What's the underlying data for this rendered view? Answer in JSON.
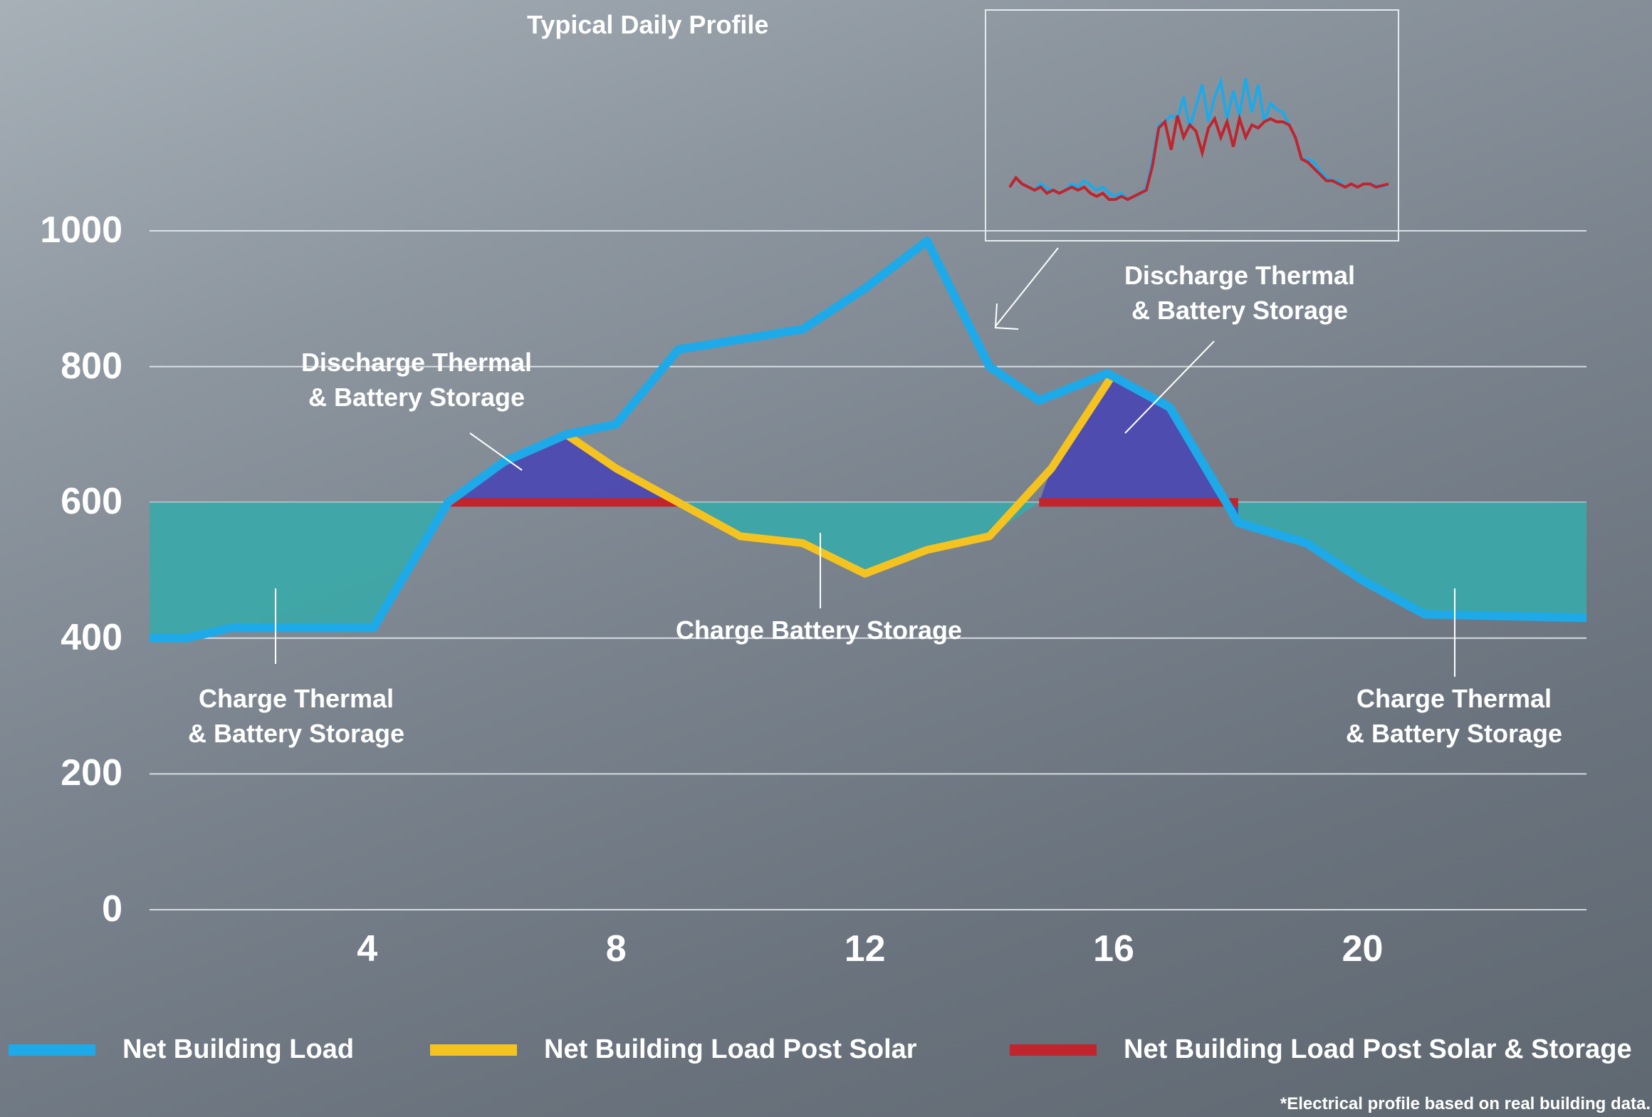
{
  "title": "Typical Daily Profile",
  "footnote": "*Electrical profile based on real building data.",
  "colors": {
    "net_building_load": "#1ea9e8",
    "post_solar": "#f5c320",
    "post_solar_storage": "#c0242c",
    "charge_fill": "#3aa9a9",
    "discharge_fill": "#4a46b2"
  },
  "chart_data": {
    "type": "line",
    "x_ticks": [
      "4",
      "8",
      "12",
      "16",
      "20"
    ],
    "y_ticks": [
      "1000",
      "800",
      "600",
      "400",
      "200",
      "0"
    ],
    "xlim": [
      0.5,
      23.6
    ],
    "ylim": [
      0,
      1000
    ],
    "grid": true,
    "series": [
      {
        "name": "Net Building  Load",
        "x": [
          0.5,
          1.1,
          1.8,
          2.5,
          3.3,
          4.1,
          5.3,
          6.2,
          7.2,
          8.0,
          9.0,
          10.0,
          11.0,
          12.0,
          13.0,
          14.0,
          14.8,
          15.9,
          16.9,
          18.0,
          19.1,
          20.0,
          21.0,
          23.6
        ],
        "y": [
          400,
          400,
          415,
          415,
          415,
          415,
          600,
          660,
          700,
          715,
          825,
          840,
          855,
          915,
          985,
          800,
          750,
          790,
          740,
          570,
          540,
          485,
          435,
          430
        ]
      },
      {
        "name": "Net Building  Load Post Solar",
        "x": [
          7.2,
          8.0,
          9.0,
          10.0,
          11.0,
          12.0,
          13.0,
          14.0,
          15.0,
          16.0
        ],
        "y": [
          700,
          650,
          600,
          550,
          540,
          495,
          530,
          550,
          650,
          790
        ]
      },
      {
        "name": "Net Building  Load Post Solar & Storage",
        "x": [
          5.3,
          9.0,
          14.8,
          18.0
        ],
        "y": [
          600,
          600,
          600,
          600
        ]
      }
    ],
    "inset": {
      "title": "Typical Daily Profile",
      "series": [
        {
          "name": "blue",
          "values": [
            1090,
            1120,
            1100,
            1090,
            1080,
            1100,
            1085,
            1080,
            1070,
            1080,
            1100,
            1090,
            1110,
            1095,
            1080,
            1090,
            1070,
            1060,
            1070,
            1050,
            1060,
            1065,
            1090,
            1180,
            1290,
            1300,
            1320,
            1310,
            1380,
            1280,
            1350,
            1420,
            1300,
            1380,
            1430,
            1310,
            1400,
            1320,
            1440,
            1330,
            1420,
            1300,
            1360,
            1340,
            1330,
            1290,
            1250,
            1180,
            1180,
            1170,
            1140,
            1120,
            1110,
            1110,
            1090,
            1100,
            1090,
            1100,
            1100,
            1095,
            1090,
            1100
          ]
        },
        {
          "name": "red",
          "values": [
            1090,
            1120,
            1100,
            1090,
            1080,
            1090,
            1070,
            1080,
            1070,
            1080,
            1090,
            1080,
            1090,
            1070,
            1060,
            1070,
            1050,
            1050,
            1060,
            1050,
            1060,
            1070,
            1080,
            1160,
            1280,
            1300,
            1210,
            1320,
            1250,
            1290,
            1270,
            1200,
            1280,
            1310,
            1250,
            1300,
            1220,
            1310,
            1250,
            1290,
            1280,
            1300,
            1310,
            1300,
            1300,
            1290,
            1250,
            1180,
            1170,
            1150,
            1130,
            1110,
            1110,
            1100,
            1090,
            1100,
            1090,
            1100,
            1100,
            1090,
            1095,
            1100
          ]
        }
      ]
    }
  },
  "annotations": {
    "discharge_left": "Discharge Thermal\n& Battery Storage",
    "discharge_right": "Discharge Thermal\n& Battery Storage",
    "charge_left": "Charge Thermal\n& Battery Storage",
    "charge_mid": "Charge Battery Storage",
    "charge_right": "Charge Thermal\n& Battery Storage"
  },
  "legend": [
    {
      "label": "Net Building  Load",
      "color": "#1ea9e8"
    },
    {
      "label": "Net Building  Load Post Solar",
      "color": "#f5c320"
    },
    {
      "label": "Net Building  Load Post Solar & Storage",
      "color": "#c0242c"
    }
  ]
}
